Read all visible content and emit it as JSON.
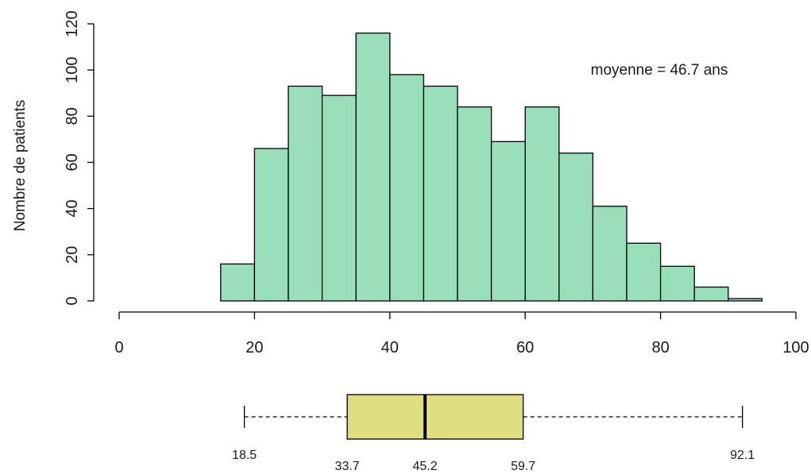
{
  "chart_data": [
    {
      "type": "bar",
      "subtype": "histogram",
      "title": "",
      "xlabel": "",
      "ylabel": "Nombre de patients",
      "annotation": "moyenne = 46.7 ans",
      "xlim": [
        0,
        100
      ],
      "ylim": [
        0,
        120
      ],
      "x_ticks": [
        0,
        20,
        40,
        60,
        80,
        100
      ],
      "y_ticks": [
        0,
        20,
        40,
        60,
        80,
        100,
        120
      ],
      "bin_edges": [
        15,
        20,
        25,
        30,
        35,
        40,
        45,
        50,
        55,
        60,
        65,
        70,
        75,
        80,
        85,
        90,
        95
      ],
      "values": [
        16,
        66,
        93,
        89,
        116,
        98,
        93,
        84,
        69,
        84,
        64,
        41,
        25,
        15,
        6,
        1
      ],
      "bar_color": "#99dfbb",
      "grid": false
    },
    {
      "type": "boxplot",
      "orientation": "horizontal",
      "min": 18.5,
      "q1": 33.7,
      "median": 45.2,
      "q3": 59.7,
      "max": 92.1,
      "labels": [
        "18.5",
        "33.7",
        "45.2",
        "59.7",
        "92.1"
      ],
      "box_color": "#dfdf7f"
    }
  ]
}
